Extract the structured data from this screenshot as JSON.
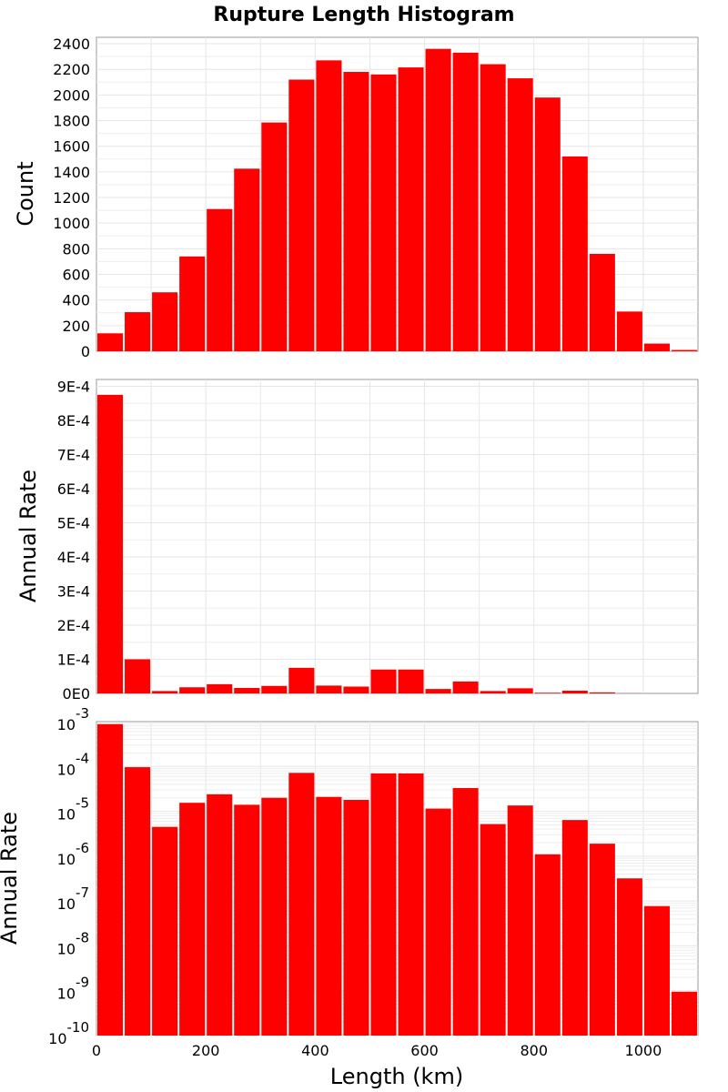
{
  "chart_data": [
    {
      "type": "bar",
      "title": "Rupture Length Histogram",
      "xlabel": "",
      "ylabel": "Count",
      "xlim": [
        0,
        1100
      ],
      "ylim": [
        0,
        2450
      ],
      "grid": true,
      "bar_color": "#ff0000",
      "x_ticks": [],
      "y_ticks": [
        "0",
        "200",
        "400",
        "600",
        "800",
        "1000",
        "1200",
        "1400",
        "1600",
        "1800",
        "2000",
        "2200",
        "2400"
      ],
      "x": [
        25,
        75,
        125,
        175,
        225,
        275,
        325,
        375,
        425,
        475,
        525,
        575,
        625,
        675,
        725,
        775,
        825,
        875,
        925,
        975,
        1025,
        1075
      ],
      "values": [
        140,
        305,
        460,
        740,
        1110,
        1425,
        1785,
        2120,
        2270,
        2180,
        2160,
        2215,
        2360,
        2330,
        2240,
        2130,
        1980,
        1520,
        760,
        310,
        60,
        10
      ]
    },
    {
      "type": "bar",
      "title": "",
      "xlabel": "",
      "ylabel": "Annual Rate",
      "xlim": [
        0,
        1100
      ],
      "ylim": [
        0,
        0.00092
      ],
      "grid": true,
      "bar_color": "#ff0000",
      "x_ticks": [],
      "y_ticks": [
        "0E0",
        "1E-4",
        "2E-4",
        "3E-4",
        "4E-4",
        "5E-4",
        "6E-4",
        "7E-4",
        "8E-4",
        "9E-4"
      ],
      "x": [
        25,
        75,
        125,
        175,
        225,
        275,
        325,
        375,
        425,
        475,
        525,
        575,
        625,
        675,
        725,
        775,
        825,
        875,
        925,
        975,
        1025,
        1075
      ],
      "values": [
        0.000875,
        0.0001,
        7e-06,
        1.8e-05,
        2.7e-05,
        1.6e-05,
        2.2e-05,
        7.5e-05,
        2.3e-05,
        2e-05,
        7e-05,
        7e-05,
        1.3e-05,
        3.5e-05,
        7e-06,
        1.5e-05,
        2e-06,
        8e-06,
        3e-06,
        3e-07,
        1e-07,
        2e-09
      ]
    },
    {
      "type": "bar",
      "title": "",
      "xlabel": "Length (km)",
      "ylabel": "Annual Rate",
      "xlim": [
        0,
        1100
      ],
      "ylim": [
        1e-10,
        0.001
      ],
      "y_scale": "log",
      "grid": true,
      "bar_color": "#ff0000",
      "x_ticks": [
        "0",
        "200",
        "400",
        "600",
        "800",
        "1000"
      ],
      "y_ticks": [
        {
          "base": "10",
          "exp": "-10"
        },
        {
          "base": "10",
          "exp": "-9"
        },
        {
          "base": "10",
          "exp": "-8"
        },
        {
          "base": "10",
          "exp": "-7"
        },
        {
          "base": "10",
          "exp": "-6"
        },
        {
          "base": "10",
          "exp": "-5"
        },
        {
          "base": "10",
          "exp": "-4"
        },
        {
          "base": "10",
          "exp": "-3"
        }
      ],
      "x": [
        25,
        75,
        125,
        175,
        225,
        275,
        325,
        375,
        425,
        475,
        525,
        575,
        625,
        675,
        725,
        775,
        825,
        875,
        925,
        975,
        1025,
        1075
      ],
      "values": [
        0.00088,
        9.65e-05,
        4.5e-06,
        1.55e-05,
        2.4e-05,
        1.4e-05,
        2e-05,
        7.2e-05,
        2.1e-05,
        1.8e-05,
        7e-05,
        7e-05,
        1.15e-05,
        3.3e-05,
        5.2e-06,
        1.35e-05,
        1.1e-06,
        6.4e-06,
        1.9e-06,
        3.2e-07,
        7.7e-08,
        9.5e-10
      ]
    }
  ]
}
